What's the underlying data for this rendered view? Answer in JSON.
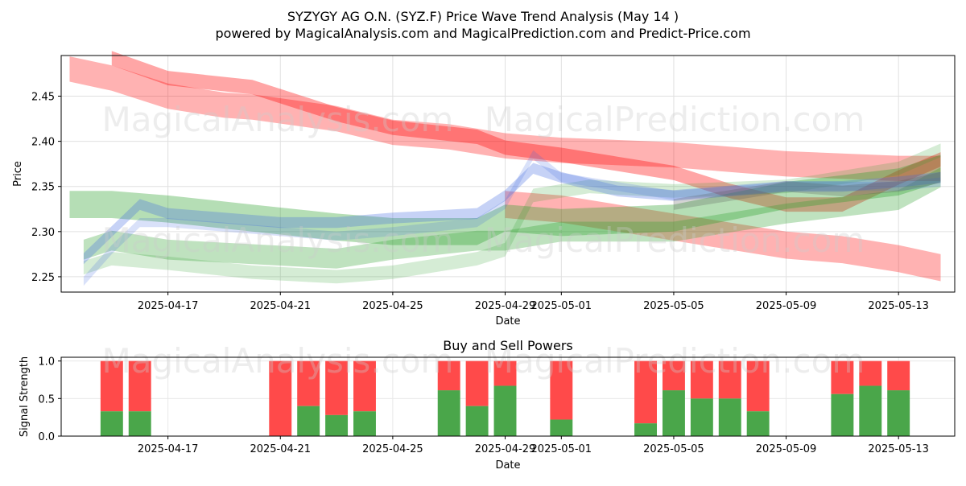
{
  "title": "SYZYGY AG O.N. (SYZ.F) Price Wave Trend Analysis (May 14 )",
  "subtitle": "powered by MagicalAnalysis.com and MagicalPrediction.com and Predict-Price.com",
  "watermarks": [
    "MagicalAnalysis.com",
    "MagicalPrediction.com"
  ],
  "chart_data": [
    {
      "type": "line",
      "title": "SYZYGY AG O.N. (SYZ.F) Price Wave Trend Analysis (May 14 )",
      "xlabel": "Date",
      "ylabel": "Price",
      "x_range_days": [
        -1.8,
        30.0
      ],
      "ylim": [
        2.233,
        2.495
      ],
      "x_ticks": [
        {
          "day": 2,
          "label": "2025-04-17"
        },
        {
          "day": 6,
          "label": "2025-04-21"
        },
        {
          "day": 10,
          "label": "2025-04-25"
        },
        {
          "day": 14,
          "label": "2025-04-29"
        },
        {
          "day": 16,
          "label": "2025-05-01"
        },
        {
          "day": 20,
          "label": "2025-05-05"
        },
        {
          "day": 24,
          "label": "2025-05-09"
        },
        {
          "day": 28,
          "label": "2025-05-13"
        }
      ],
      "y_ticks": [
        2.25,
        2.3,
        2.35,
        2.4,
        2.45
      ],
      "grid": true,
      "series": [
        {
          "name": "red-wave-upper",
          "color": "#ff0000",
          "opacity": 0.3,
          "band": 0.028,
          "x": [
            -1.5,
            0,
            2,
            4,
            5,
            8,
            10,
            12,
            14,
            16,
            20,
            24,
            28,
            29.5
          ],
          "y": [
            2.48,
            2.47,
            2.45,
            2.44,
            2.438,
            2.425,
            2.41,
            2.405,
            2.395,
            2.39,
            2.385,
            2.375,
            2.37,
            2.37
          ]
        },
        {
          "name": "red-wave-main",
          "color": "#ff0000",
          "opacity": 0.35,
          "band": 0.016,
          "x": [
            0,
            2,
            5,
            8,
            10,
            13,
            14,
            16,
            18,
            20,
            22,
            24,
            26,
            28,
            29.5
          ],
          "y": [
            2.492,
            2.47,
            2.46,
            2.43,
            2.415,
            2.405,
            2.393,
            2.385,
            2.375,
            2.365,
            2.345,
            2.33,
            2.33,
            2.36,
            2.38
          ]
        },
        {
          "name": "red-wave-lower",
          "color": "#ff0000",
          "opacity": 0.3,
          "band": 0.03,
          "x": [
            14,
            16,
            18,
            20,
            22,
            24,
            26,
            28,
            29.5
          ],
          "y": [
            2.33,
            2.325,
            2.315,
            2.305,
            2.295,
            2.285,
            2.28,
            2.27,
            2.26
          ]
        },
        {
          "name": "green-wave-1",
          "color": "#2ca02c",
          "opacity": 0.35,
          "band": 0.03,
          "x": [
            -1.5,
            0,
            2,
            5,
            8,
            10,
            13,
            14,
            16,
            20,
            24,
            28,
            29.5
          ],
          "y": [
            2.33,
            2.33,
            2.325,
            2.315,
            2.305,
            2.3,
            2.3,
            2.315,
            2.31,
            2.315,
            2.34,
            2.355,
            2.37
          ]
        },
        {
          "name": "green-wave-2",
          "color": "#2ca02c",
          "opacity": 0.3,
          "band": 0.022,
          "x": [
            -1,
            0,
            2,
            5,
            8,
            10,
            13,
            14,
            16,
            20,
            24,
            28,
            29.5
          ],
          "y": [
            2.28,
            2.29,
            2.28,
            2.275,
            2.27,
            2.28,
            2.29,
            2.29,
            2.3,
            2.3,
            2.32,
            2.335,
            2.36
          ]
        },
        {
          "name": "green-wave-3",
          "color": "#2ca02c",
          "opacity": 0.2,
          "band": 0.015,
          "x": [
            -1,
            0,
            2,
            5,
            8,
            10,
            13,
            14,
            15,
            17,
            20,
            24,
            28,
            29.5
          ],
          "y": [
            2.26,
            2.27,
            2.265,
            2.255,
            2.25,
            2.255,
            2.27,
            2.28,
            2.34,
            2.35,
            2.345,
            2.35,
            2.37,
            2.39
          ]
        },
        {
          "name": "blue-wave-1",
          "color": "#4169e1",
          "opacity": 0.3,
          "band": 0.012,
          "x": [
            -1,
            0,
            1,
            2,
            4,
            6,
            8,
            10,
            13,
            14,
            15,
            16,
            18,
            20,
            22,
            24,
            26,
            28,
            29.5
          ],
          "y": [
            2.27,
            2.3,
            2.33,
            2.32,
            2.315,
            2.31,
            2.31,
            2.315,
            2.32,
            2.34,
            2.37,
            2.36,
            2.345,
            2.34,
            2.345,
            2.35,
            2.35,
            2.355,
            2.36
          ]
        },
        {
          "name": "blue-wave-2",
          "color": "#4169e1",
          "opacity": 0.2,
          "band": 0.01,
          "x": [
            -1,
            0,
            1,
            2,
            4,
            6,
            8,
            10,
            13,
            14,
            15,
            16,
            18,
            20,
            24,
            28,
            29.5
          ],
          "y": [
            2.245,
            2.28,
            2.31,
            2.31,
            2.305,
            2.3,
            2.295,
            2.3,
            2.31,
            2.33,
            2.385,
            2.36,
            2.35,
            2.34,
            2.35,
            2.35,
            2.355
          ]
        },
        {
          "name": "dark-wave",
          "color": "#555555",
          "opacity": 0.25,
          "band": 0.012,
          "x": [
            20,
            22,
            24,
            26,
            28,
            29.5
          ],
          "y": [
            2.33,
            2.34,
            2.35,
            2.345,
            2.35,
            2.36
          ]
        }
      ]
    },
    {
      "type": "bar",
      "title": "Buy and Sell Powers",
      "xlabel": "Date",
      "ylabel": "Signal Strength",
      "ylim": [
        0,
        1.05
      ],
      "y_ticks": [
        0.0,
        0.5,
        1.0
      ],
      "x_ticks": [
        {
          "day": 2,
          "label": "2025-04-17"
        },
        {
          "day": 6,
          "label": "2025-04-21"
        },
        {
          "day": 10,
          "label": "2025-04-25"
        },
        {
          "day": 14,
          "label": "2025-04-29"
        },
        {
          "day": 16,
          "label": "2025-05-01"
        },
        {
          "day": 20,
          "label": "2025-05-05"
        },
        {
          "day": 24,
          "label": "2025-05-09"
        },
        {
          "day": 28,
          "label": "2025-05-13"
        }
      ],
      "buy_color": "#4aa64a",
      "sell_color": "#ff4a4a",
      "bars": [
        {
          "day": 0,
          "buy": 0.33
        },
        {
          "day": 1,
          "buy": 0.33
        },
        {
          "day": 6,
          "buy": 0.0
        },
        {
          "day": 7,
          "buy": 0.4
        },
        {
          "day": 8,
          "buy": 0.28
        },
        {
          "day": 9,
          "buy": 0.33
        },
        {
          "day": 12,
          "buy": 0.61
        },
        {
          "day": 13,
          "buy": 0.4
        },
        {
          "day": 14,
          "buy": 0.67
        },
        {
          "day": 16,
          "buy": 0.22
        },
        {
          "day": 19,
          "buy": 0.17
        },
        {
          "day": 20,
          "buy": 0.61
        },
        {
          "day": 21,
          "buy": 0.5
        },
        {
          "day": 22,
          "buy": 0.5
        },
        {
          "day": 23,
          "buy": 0.33
        },
        {
          "day": 26,
          "buy": 0.56
        },
        {
          "day": 27,
          "buy": 0.67
        },
        {
          "day": 28,
          "buy": 0.61
        }
      ]
    }
  ]
}
